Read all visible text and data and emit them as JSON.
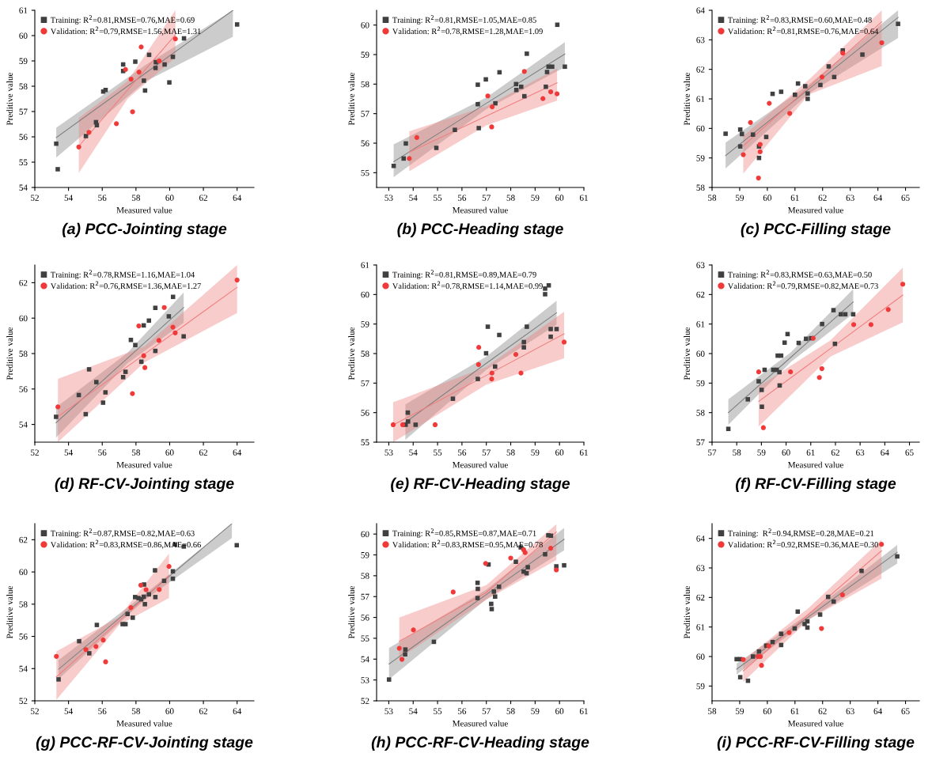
{
  "chart_data": [
    {
      "type": "scatter",
      "title": "(a) PCC-Jointing stage",
      "xlabel": "Measured value",
      "ylabel": "Preditive value",
      "xlim": [
        52,
        65
      ],
      "ylim": [
        54,
        61
      ],
      "xticks": [
        52,
        54,
        56,
        58,
        60,
        62,
        64
      ],
      "yticks": [
        54,
        55,
        56,
        57,
        58,
        59,
        60,
        61
      ],
      "legend": "top left",
      "series": [
        {
          "type": "line",
          "color": "#808080",
          "marker": "none",
          "x": [
            53.27,
            58.6,
            63.75
          ],
          "values": [
            55.97,
            58.53,
            61.0
          ],
          "lower": [
            55.18,
            58.2,
            59.95
          ],
          "upper": [
            56.36,
            58.85,
            61.0
          ]
        },
        {
          "type": "line",
          "color": "#f08080",
          "marker": "none",
          "x": [
            54.61,
            57.5,
            60.34
          ],
          "values": [
            55.63,
            57.85,
            60.03
          ],
          "lower": [
            54.57,
            57.5,
            59.13
          ],
          "upper": [
            56.74,
            58.2,
            61.0
          ]
        },
        {
          "name": "Training: R$^{2}$=0.81,RMSE=0.76,MAE=0.69",
          "color": "#404040",
          "marker": "square",
          "x": [
            53.27,
            53.36,
            55.03,
            55.63,
            55.68,
            56.06,
            56.2,
            57.24,
            57.24,
            57.96,
            58.47,
            58.54,
            58.78,
            59.16,
            59.18,
            59.7,
            59.98,
            60.19,
            60.85,
            64.0
          ],
          "values": [
            55.73,
            54.72,
            56.03,
            56.58,
            56.46,
            57.79,
            57.85,
            58.86,
            58.6,
            58.97,
            58.22,
            57.83,
            59.24,
            58.72,
            58.95,
            58.86,
            58.15,
            59.16,
            59.89,
            60.44
          ]
        },
        {
          "name": "Validation: R$^{2}$=0.79,RMSE=1.56,MAE=1.31",
          "color": "#f03a3a",
          "marker": "circle",
          "x": [
            54.61,
            55.21,
            56.84,
            57.38,
            57.71,
            57.8,
            58.18,
            58.31,
            59.38,
            60.34
          ],
          "values": [
            55.6,
            56.18,
            56.52,
            58.66,
            58.28,
            56.99,
            58.56,
            59.55,
            59.0,
            59.87
          ]
        }
      ]
    },
    {
      "type": "scatter",
      "title": "(b) PCC-Heading stage",
      "xlabel": "Measured value",
      "ylabel": "Preditive value",
      "xlim": [
        52.5,
        61
      ],
      "ylim": [
        54.5,
        60.5
      ],
      "xticks": [
        53,
        54,
        55,
        56,
        57,
        58,
        59,
        60,
        61
      ],
      "yticks": [
        55,
        56,
        57,
        58,
        59,
        60
      ],
      "legend": "top left",
      "series": [
        {
          "type": "line",
          "color": "#808080",
          "marker": "none",
          "x": [
            53.2,
            57.0,
            60.22
          ],
          "values": [
            55.37,
            57.35,
            59.02
          ],
          "lower": [
            54.85,
            57.15,
            58.58
          ],
          "upper": [
            55.96,
            57.55,
            59.42
          ]
        },
        {
          "type": "line",
          "color": "#f08080",
          "marker": "none",
          "x": [
            53.84,
            57.0,
            59.9
          ],
          "values": [
            55.69,
            56.92,
            58.04
          ],
          "lower": [
            55.05,
            56.6,
            57.44
          ],
          "upper": [
            56.4,
            57.25,
            58.53
          ]
        },
        {
          "name": "Training: R$^{2}$=0.81,RMSE=1.05,MAE=0.85",
          "color": "#404040",
          "marker": "square",
          "x": [
            53.2,
            53.61,
            53.7,
            54.95,
            55.71,
            56.65,
            56.65,
            56.69,
            56.98,
            57.37,
            57.54,
            58.22,
            58.23,
            58.43,
            58.56,
            58.66,
            59.44,
            59.49,
            59.55,
            59.7,
            59.91,
            60.22
          ],
          "values": [
            55.23,
            55.48,
            55.99,
            55.84,
            56.45,
            57.98,
            57.32,
            56.51,
            58.16,
            57.35,
            58.4,
            58.0,
            57.8,
            57.91,
            57.59,
            59.03,
            57.91,
            58.41,
            58.59,
            58.59,
            60.01,
            58.59
          ]
        },
        {
          "name": "Validation: R$^{2}$=0.78,RMSE=1.28,MAE=1.09",
          "color": "#f03a3a",
          "marker": "circle",
          "x": [
            53.84,
            54.15,
            57.06,
            57.24,
            57.22,
            58.56,
            59.32,
            59.64,
            59.9
          ],
          "values": [
            55.48,
            56.19,
            57.6,
            57.23,
            56.55,
            58.43,
            57.51,
            57.74,
            57.67
          ]
        }
      ]
    },
    {
      "type": "scatter",
      "title": "(c) PCC-Filling stage",
      "xlabel": "Measured value",
      "ylabel": "Preditive value",
      "xlim": [
        58,
        65.5
      ],
      "ylim": [
        58,
        64
      ],
      "xticks": [
        58,
        59,
        60,
        61,
        62,
        63,
        64,
        65
      ],
      "yticks": [
        58,
        59,
        60,
        61,
        62,
        63,
        64
      ],
      "legend": "top left",
      "series": [
        {
          "type": "line",
          "color": "#808080",
          "marker": "none",
          "x": [
            58.49,
            61.5,
            64.73
          ],
          "values": [
            59.08,
            61.33,
            63.76
          ],
          "lower": [
            58.64,
            61.18,
            63.06
          ],
          "upper": [
            59.52,
            61.48,
            64.0
          ]
        },
        {
          "type": "line",
          "color": "#f08080",
          "marker": "none",
          "x": [
            59.13,
            61.5,
            64.14
          ],
          "values": [
            59.41,
            61.4,
            63.61
          ],
          "lower": [
            58.47,
            61.15,
            62.11
          ],
          "upper": [
            59.74,
            61.65,
            64.0
          ]
        },
        {
          "name": "Training: R$^{2}$=0.83,RMSE=0.60,MAE=0.48",
          "color": "#404040",
          "marker": "square",
          "x": [
            58.49,
            59.02,
            59.08,
            59.02,
            59.48,
            59.7,
            59.7,
            59.96,
            60.19,
            60.5,
            61.0,
            61.11,
            61.37,
            61.46,
            61.46,
            61.92,
            62.22,
            62.42,
            62.73,
            63.44,
            64.73
          ],
          "values": [
            59.82,
            59.96,
            59.81,
            59.39,
            59.79,
            59.39,
            59.0,
            59.71,
            61.17,
            61.24,
            61.14,
            61.52,
            61.43,
            61.18,
            61.0,
            61.47,
            62.1,
            61.74,
            62.64,
            62.5,
            63.54
          ]
        },
        {
          "name": "Validation: R$^{2}$=0.81,RMSE=0.76,MAE=0.64",
          "color": "#f03a3a",
          "marker": "circle",
          "x": [
            59.13,
            59.74,
            59.74,
            59.68,
            59.39,
            60.07,
            60.81,
            61.98,
            62.73,
            64.14
          ],
          "values": [
            59.11,
            59.46,
            59.21,
            58.32,
            60.2,
            60.85,
            60.51,
            61.74,
            62.55,
            62.9
          ]
        }
      ]
    },
    {
      "type": "scatter",
      "title": "(d) RF-CV-Jointing stage",
      "xlabel": "Measured value",
      "ylabel": "Preditive value",
      "xlim": [
        52,
        65
      ],
      "ylim": [
        53,
        63
      ],
      "xticks": [
        52,
        54,
        56,
        58,
        60,
        62,
        64
      ],
      "yticks": [
        54,
        56,
        58,
        60,
        62
      ],
      "legend": "top left",
      "series": [
        {
          "type": "line",
          "color": "#808080",
          "marker": "none",
          "x": [
            53.26,
            57.5,
            60.83
          ],
          "values": [
            54.1,
            57.74,
            60.6
          ],
          "lower": [
            53.26,
            57.45,
            59.74
          ],
          "upper": [
            54.96,
            58.05,
            61.45
          ]
        },
        {
          "type": "line",
          "color": "#f08080",
          "marker": "none",
          "x": [
            53.37,
            58.5,
            64.0
          ],
          "values": [
            54.44,
            57.96,
            61.74
          ],
          "lower": [
            53.0,
            57.5,
            60.29
          ],
          "upper": [
            56.57,
            58.4,
            63.0
          ]
        },
        {
          "name": "Training: R$^{2}$=0.78,RMSE=1.16,MAE=1.04",
          "color": "#404040",
          "marker": "square",
          "x": [
            53.26,
            55.02,
            54.61,
            55.22,
            55.65,
            56.19,
            56.05,
            57.24,
            57.38,
            57.7,
            57.96,
            58.32,
            58.46,
            58.77,
            59.15,
            59.15,
            59.95,
            60.2,
            60.83
          ],
          "values": [
            54.43,
            54.58,
            55.66,
            57.11,
            56.39,
            55.81,
            55.23,
            56.67,
            56.97,
            58.77,
            58.48,
            57.54,
            59.59,
            59.86,
            58.15,
            60.58,
            60.1,
            61.2,
            58.97
          ]
        },
        {
          "name": "Validation: R$^{2}$=0.76,RMSE=1.36,MAE=1.27",
          "color": "#f03a3a",
          "marker": "circle",
          "x": [
            53.37,
            57.79,
            58.17,
            58.46,
            58.53,
            59.36,
            59.68,
            60.19,
            60.33,
            64.0
          ],
          "values": [
            54.99,
            55.74,
            59.56,
            57.88,
            57.21,
            58.74,
            60.6,
            59.49,
            59.17,
            62.15
          ]
        }
      ]
    },
    {
      "type": "scatter",
      "title": "(e) RF-CV-Heading stage",
      "xlabel": "Measured value",
      "ylabel": "Preditive value",
      "xlim": [
        52.5,
        61
      ],
      "ylim": [
        55,
        61
      ],
      "xticks": [
        53,
        54,
        55,
        56,
        57,
        58,
        59,
        60,
        61
      ],
      "yticks": [
        55,
        56,
        57,
        58,
        59,
        60,
        61
      ],
      "legend": "top left",
      "series": [
        {
          "type": "line",
          "color": "#808080",
          "marker": "none",
          "x": [
            53.68,
            57.0,
            59.88
          ],
          "values": [
            55.67,
            57.67,
            59.38
          ],
          "lower": [
            55.08,
            57.45,
            58.98
          ],
          "upper": [
            56.28,
            57.9,
            59.79
          ]
        },
        {
          "type": "line",
          "color": "#f08080",
          "marker": "none",
          "x": [
            53.18,
            57.0,
            60.19
          ],
          "values": [
            55.58,
            57.26,
            58.67
          ],
          "lower": [
            55.0,
            56.95,
            57.84
          ],
          "upper": [
            56.35,
            57.55,
            59.42
          ]
        },
        {
          "name": "Training: R$^{2}$=0.81,RMSE=0.89,MAE=0.79",
          "color": "#404040",
          "marker": "square",
          "x": [
            53.69,
            53.78,
            53.79,
            54.1,
            55.63,
            56.65,
            56.99,
            57.06,
            57.36,
            57.53,
            58.54,
            58.54,
            58.66,
            59.41,
            59.41,
            59.56,
            59.64,
            59.64,
            59.88
          ],
          "values": [
            55.59,
            56.0,
            55.7,
            55.59,
            56.47,
            57.14,
            58.01,
            58.91,
            57.56,
            58.63,
            58.21,
            58.39,
            58.91,
            60.01,
            60.2,
            60.31,
            58.83,
            58.57,
            58.83
          ]
        },
        {
          "name": "Validation: R$^{2}$=0.78,RMSE=1.14,MAE=0.99",
          "color": "#f03a3a",
          "marker": "circle",
          "x": [
            53.18,
            53.57,
            54.9,
            56.69,
            56.68,
            57.22,
            57.23,
            58.21,
            58.42,
            60.19
          ],
          "values": [
            55.59,
            55.59,
            55.59,
            58.21,
            57.63,
            57.14,
            57.34,
            57.97,
            57.34,
            58.39
          ]
        }
      ]
    },
    {
      "type": "scatter",
      "title": "(f) RF-CV-Filling stage",
      "xlabel": "Measured value",
      "ylabel": "Preditive value",
      "xlim": [
        57,
        65.4
      ],
      "ylim": [
        57,
        63
      ],
      "xticks": [
        57,
        58,
        59,
        60,
        61,
        62,
        63,
        64,
        65
      ],
      "yticks": [
        57,
        58,
        59,
        60,
        61,
        62,
        63
      ],
      "legend": "top left",
      "series": [
        {
          "type": "line",
          "color": "#808080",
          "marker": "none",
          "x": [
            57.66,
            60.2,
            62.72
          ],
          "values": [
            58.0,
            59.88,
            61.75
          ],
          "lower": [
            57.59,
            59.72,
            61.35
          ],
          "upper": [
            58.45,
            60.05,
            62.18
          ]
        },
        {
          "type": "line",
          "color": "#f08080",
          "marker": "none",
          "x": [
            58.89,
            61.8,
            64.73
          ],
          "values": [
            58.38,
            60.17,
            61.98
          ],
          "lower": [
            57.53,
            59.9,
            61.06
          ],
          "upper": [
            58.89,
            60.45,
            62.91
          ]
        },
        {
          "name": "Training: R$^{2}$=0.83,RMSE=0.63,MAE=0.50",
          "color": "#404040",
          "marker": "square",
          "x": [
            57.66,
            58.45,
            58.89,
            59.01,
            59.02,
            59.13,
            59.48,
            59.62,
            59.73,
            59.66,
            59.8,
            59.74,
            59.94,
            60.06,
            60.51,
            60.81,
            61.01,
            61.46,
            61.98,
            61.92,
            62.22,
            62.4,
            62.72
          ],
          "values": [
            57.45,
            58.45,
            59.06,
            58.77,
            58.2,
            59.45,
            59.45,
            59.45,
            59.37,
            59.93,
            59.93,
            58.92,
            60.37,
            60.66,
            60.36,
            60.5,
            60.52,
            61.0,
            60.33,
            61.47,
            61.33,
            61.33,
            61.33
          ]
        },
        {
          "name": "Validation: R$^{2}$=0.79,RMSE=0.82,MAE=0.73",
          "color": "#f03a3a",
          "marker": "circle",
          "x": [
            58.89,
            59.08,
            60.18,
            61.1,
            61.35,
            61.45,
            62.74,
            63.44,
            64.14,
            64.73
          ],
          "values": [
            59.38,
            57.49,
            59.38,
            60.52,
            59.19,
            59.49,
            60.98,
            60.98,
            61.49,
            62.35
          ]
        }
      ]
    },
    {
      "type": "scatter",
      "title": "(g) PCC-RF-CV-Jointing stage",
      "xlabel": "Measured value",
      "ylabel": "Preditive value",
      "xlim": [
        52,
        65
      ],
      "ylim": [
        52,
        63
      ],
      "xticks": [
        52,
        54,
        56,
        58,
        60,
        62,
        64
      ],
      "yticks": [
        52,
        54,
        56,
        58,
        60,
        62
      ],
      "legend": "top left",
      "series": [
        {
          "type": "line",
          "color": "#808080",
          "marker": "none",
          "x": [
            53.41,
            58.5,
            63.69
          ],
          "values": [
            53.96,
            58.43,
            63.0
          ],
          "lower": [
            53.35,
            58.25,
            62.1
          ],
          "upper": [
            54.53,
            58.6,
            63.0
          ]
        },
        {
          "type": "line",
          "color": "#f08080",
          "marker": "none",
          "x": [
            53.28,
            57.0,
            59.96
          ],
          "values": [
            53.49,
            56.95,
            59.77
          ],
          "lower": [
            52.06,
            56.7,
            58.38
          ],
          "upper": [
            55.07,
            57.2,
            61.14
          ]
        },
        {
          "name": "Training: R$^{2}$=0.87,RMSE=0.82,MAE=0.63",
          "color": "#404040",
          "marker": "square",
          "x": [
            53.41,
            54.63,
            55.23,
            55.68,
            57.21,
            57.38,
            57.5,
            57.81,
            57.95,
            58.15,
            58.31,
            58.46,
            58.53,
            58.48,
            58.77,
            59.15,
            59.13,
            59.67,
            60.19,
            60.19,
            60.32,
            60.84,
            63.98
          ],
          "values": [
            53.33,
            55.7,
            54.95,
            56.71,
            56.76,
            56.76,
            57.39,
            57.16,
            58.44,
            58.38,
            58.3,
            58.46,
            58.0,
            59.22,
            58.61,
            58.44,
            60.1,
            59.45,
            60.04,
            59.58,
            61.71,
            61.58,
            61.66
          ]
        },
        {
          "name": "Validation: R$^{2}$=0.83,RMSE=0.86,MAE=0.66",
          "color": "#f03a3a",
          "marker": "circle",
          "x": [
            53.28,
            55.03,
            55.63,
            56.06,
            56.2,
            57.7,
            58.29,
            58.6,
            59.38,
            59.96
          ],
          "values": [
            54.76,
            55.18,
            55.37,
            55.77,
            54.42,
            57.79,
            59.18,
            58.9,
            58.91,
            60.34
          ]
        }
      ]
    },
    {
      "type": "scatter",
      "title": "(h) PCC-RF-CV-Heading stage",
      "xlabel": "Measured value",
      "ylabel": "Preditive value",
      "xlim": [
        52.5,
        61
      ],
      "ylim": [
        52,
        60.5
      ],
      "xticks": [
        53,
        54,
        55,
        56,
        57,
        58,
        59,
        60,
        61
      ],
      "yticks": [
        52,
        53,
        54,
        55,
        56,
        57,
        58,
        59,
        60
      ],
      "legend": "top left",
      "series": [
        {
          "type": "line",
          "color": "#808080",
          "marker": "none",
          "x": [
            53.01,
            57.0,
            60.19
          ],
          "values": [
            53.77,
            57.1,
            59.75
          ],
          "lower": [
            53.03,
            56.88,
            59.22
          ],
          "upper": [
            54.53,
            57.33,
            60.29
          ]
        },
        {
          "type": "line",
          "color": "#f08080",
          "marker": "none",
          "x": [
            53.43,
            57.0,
            59.87
          ],
          "values": [
            54.86,
            57.2,
            60.1
          ],
          "lower": [
            54.03,
            56.85,
            58.75
          ],
          "upper": [
            55.99,
            57.55,
            60.47
          ]
        },
        {
          "name": "Training: R$^{2}$=0.85,RMSE=0.87,MAE=0.71",
          "color": "#404040",
          "marker": "square",
          "x": [
            53.01,
            53.67,
            53.68,
            54.85,
            56.64,
            56.65,
            56.64,
            57.09,
            57.2,
            57.22,
            57.31,
            57.36,
            57.52,
            58.21,
            58.41,
            58.53,
            58.65,
            58.7,
            59.41,
            59.54,
            59.65,
            59.87,
            60.19
          ],
          "values": [
            53.02,
            54.23,
            54.46,
            54.83,
            57.66,
            57.37,
            56.93,
            58.54,
            56.65,
            56.4,
            57.24,
            57.0,
            57.47,
            58.67,
            59.36,
            58.2,
            58.12,
            58.41,
            59.03,
            59.94,
            59.92,
            58.45,
            58.5
          ]
        },
        {
          "name": "Validation: R$^{2}$=0.83,RMSE=0.95,MAE=0.78",
          "color": "#f03a3a",
          "marker": "circle",
          "x": [
            53.43,
            53.54,
            54.01,
            55.64,
            56.97,
            58.0,
            58.53,
            58.59,
            59.64,
            59.87
          ],
          "values": [
            54.52,
            53.99,
            55.4,
            57.22,
            58.59,
            58.85,
            59.25,
            59.11,
            59.32,
            58.28
          ]
        }
      ]
    },
    {
      "type": "scatter",
      "title": "(i) PCC-RF-CV-Filling stage",
      "xlabel": "Measured value",
      "ylabel": "Preditive value",
      "xlim": [
        58,
        65.5
      ],
      "ylim": [
        58.5,
        64.5
      ],
      "xticks": [
        58,
        59,
        60,
        61,
        62,
        63,
        64,
        65
      ],
      "yticks": [
        59,
        60,
        61,
        62,
        63,
        64
      ],
      "legend": "top left",
      "series": [
        {
          "type": "line",
          "color": "#808080",
          "marker": "none",
          "x": [
            58.89,
            61.5,
            64.7
          ],
          "values": [
            59.57,
            61.35,
            63.53
          ],
          "lower": [
            59.39,
            61.25,
            63.15
          ],
          "upper": [
            59.76,
            61.45,
            63.78
          ]
        },
        {
          "type": "line",
          "color": "#f08080",
          "marker": "none",
          "x": [
            59.13,
            61.5,
            64.13
          ],
          "values": [
            59.51,
            61.44,
            63.58
          ],
          "lower": [
            59.14,
            61.25,
            62.64
          ],
          "upper": [
            59.87,
            61.65,
            63.96
          ]
        },
        {
          "name": "Training:  R$^{2}$=0.94,RMSE=0.28,MAE=0.21",
          "color": "#404040",
          "marker": "square",
          "x": [
            58.89,
            59.02,
            59.02,
            59.3,
            59.48,
            59.7,
            59.96,
            60.19,
            60.5,
            60.5,
            60.99,
            61.1,
            61.35,
            61.45,
            61.45,
            61.91,
            62.2,
            62.4,
            63.41,
            64.7
          ],
          "values": [
            59.91,
            59.91,
            59.3,
            59.18,
            60.0,
            60.17,
            60.37,
            60.49,
            60.77,
            60.39,
            60.95,
            61.52,
            61.1,
            61.19,
            60.98,
            61.42,
            62.02,
            61.86,
            62.9,
            63.39
          ]
        },
        {
          "name": "Validation: R$^{2}$=0.92,RMSE=0.36,MAE=0.30",
          "color": "#f03a3a",
          "marker": "circle",
          "x": [
            59.13,
            59.66,
            59.75,
            59.79,
            60.05,
            60.79,
            61.96,
            62.72,
            64.13
          ],
          "values": [
            59.9,
            60.0,
            60.0,
            59.7,
            60.36,
            60.81,
            60.95,
            62.09,
            63.8
          ]
        }
      ]
    }
  ]
}
